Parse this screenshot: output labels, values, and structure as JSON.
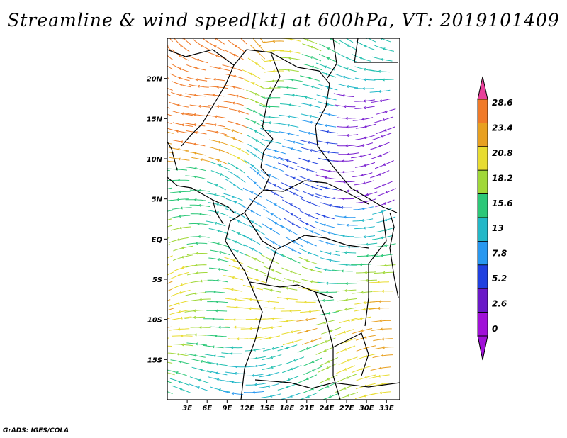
{
  "title": "Streamline & wind speed[kt] at 600hPa, VT: 2019101409",
  "footer": "GrADS: IGES/COLA",
  "map": {
    "lon_range": [
      0,
      35
    ],
    "lat_range": [
      -20,
      25
    ],
    "lon_ticks": [
      {
        "value": 3,
        "label": "3E"
      },
      {
        "value": 6,
        "label": "6E"
      },
      {
        "value": 9,
        "label": "9E"
      },
      {
        "value": 12,
        "label": "12E"
      },
      {
        "value": 15,
        "label": "15E"
      },
      {
        "value": 18,
        "label": "18E"
      },
      {
        "value": 21,
        "label": "21E"
      },
      {
        "value": 24,
        "label": "24E"
      },
      {
        "value": 27,
        "label": "27E"
      },
      {
        "value": 30,
        "label": "30E"
      },
      {
        "value": 33,
        "label": "33E"
      }
    ],
    "lat_ticks": [
      {
        "value": 20,
        "label": "20N"
      },
      {
        "value": 15,
        "label": "15N"
      },
      {
        "value": 10,
        "label": "10N"
      },
      {
        "value": 5,
        "label": "5N"
      },
      {
        "value": 0,
        "label": "EQ"
      },
      {
        "value": -5,
        "label": "5S"
      },
      {
        "value": -10,
        "label": "10S"
      },
      {
        "value": -15,
        "label": "15S"
      }
    ]
  },
  "colorbar": {
    "levels": [
      "28.6",
      "23.4",
      "20.8",
      "18.2",
      "15.6",
      "13",
      "7.8",
      "5.2",
      "2.6",
      "0"
    ],
    "colors": [
      "#e8409a",
      "#f07a28",
      "#e8a020",
      "#e8dc30",
      "#a0d838",
      "#2cc878",
      "#22b8c8",
      "#2898f0",
      "#2040e0",
      "#6a18c8",
      "#a010d8"
    ]
  },
  "colors": {
    "border": "#000000",
    "frame": "#000000"
  }
}
